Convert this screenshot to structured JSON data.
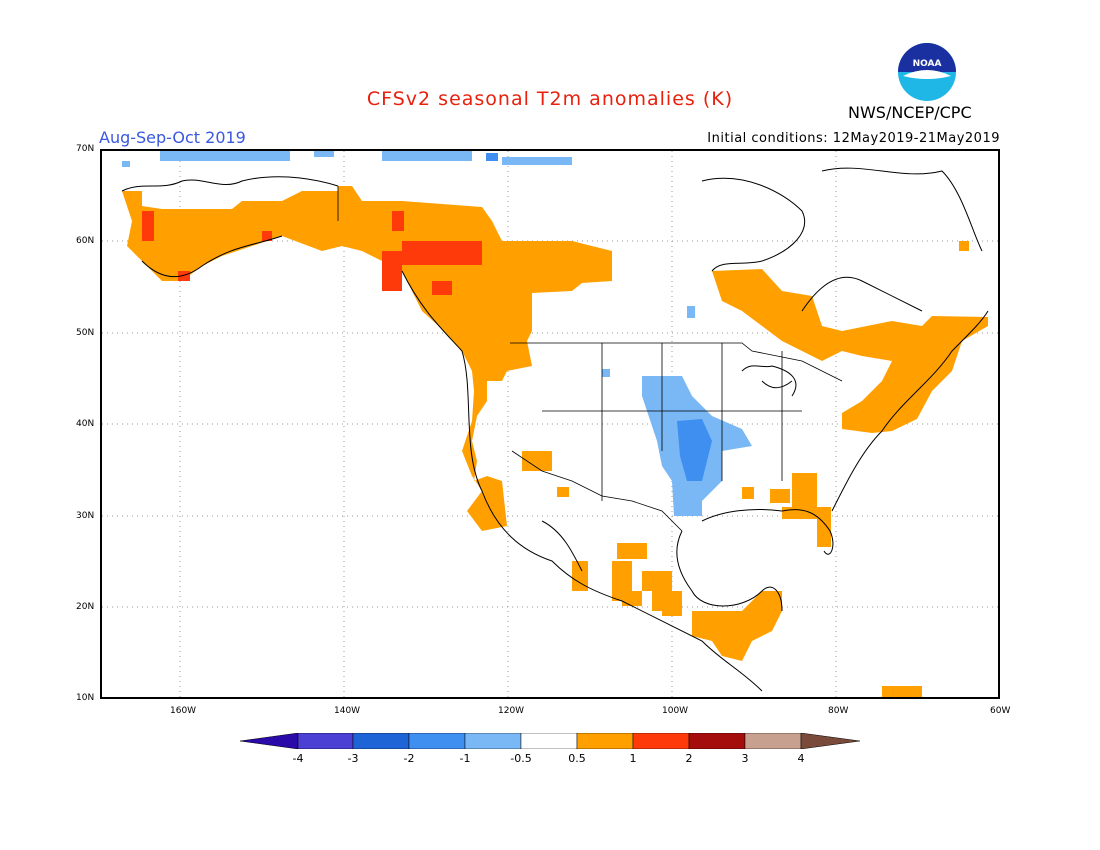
{
  "title": "CFSv2 seasonal T2m anomalies (K)",
  "period": "Aug-Sep-Oct 2019",
  "initial_conditions": "Initial conditions: 12May2019-21May2019",
  "agency": "NWS/NCEP/CPC",
  "logo_text": "NOAA",
  "lat_labels": [
    "70N",
    "60N",
    "50N",
    "40N",
    "30N",
    "20N",
    "10N"
  ],
  "lon_labels": [
    "160W",
    "140W",
    "120W",
    "100W",
    "80W",
    "60W"
  ],
  "legend": {
    "labels": [
      "-4",
      "-3",
      "-2",
      "-1",
      "-0.5",
      "0.5",
      "1",
      "2",
      "3",
      "4"
    ],
    "colors": [
      "#2a0aa8",
      "#4b3fd4",
      "#1e64d6",
      "#3f8ff0",
      "#7ab8f5",
      "#ffffff",
      "#ffa000",
      "#ff3a0a",
      "#a50d0d",
      "#c8a090",
      "#7a4a3a"
    ]
  },
  "colors": {
    "warm": "#ffa000",
    "hot": "#ff3a0a",
    "cool": "#7ab8f5",
    "cooler": "#3f8ff0",
    "cold": "#1e64d6"
  }
}
